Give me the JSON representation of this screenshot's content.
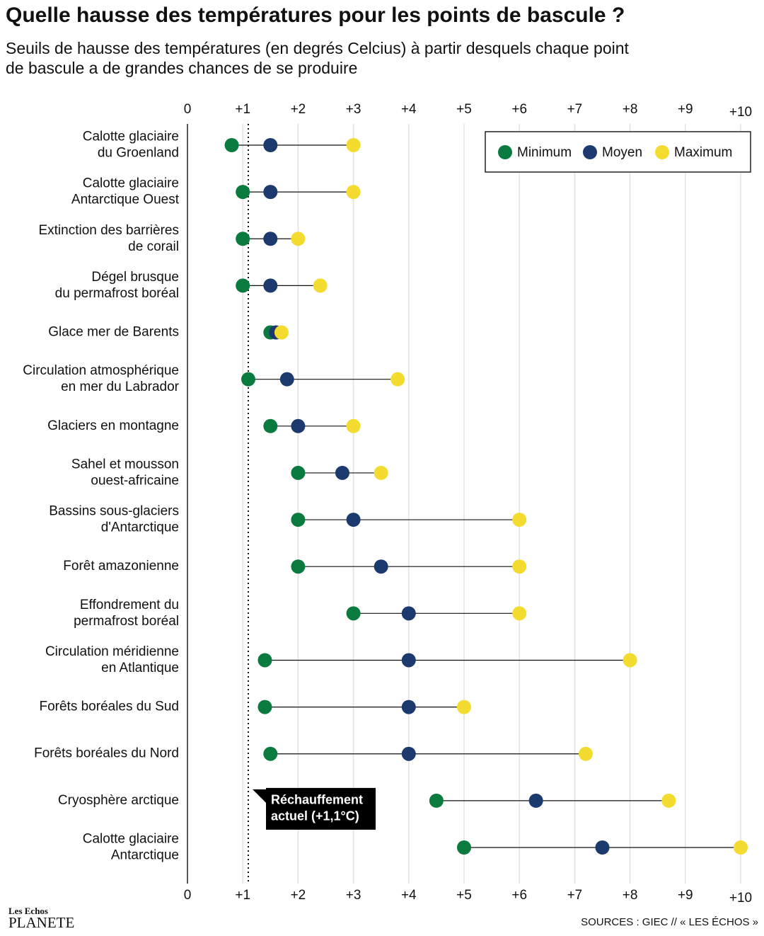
{
  "chart_data": {
    "type": "dumbbell",
    "title": "Quelle hausse des températures pour les points de bascule ?",
    "subtitle": [
      "Seuils de hausse des températures (en degrés Celcius) à partir desquels chaque point",
      "de bascule a de grandes chances de se produire"
    ],
    "categories": [
      [
        "Calotte glaciaire",
        "du Groenland"
      ],
      [
        "Calotte glaciaire",
        "Antarctique Ouest"
      ],
      [
        "Extinction des barrières",
        "de corail"
      ],
      [
        "Dégel brusque",
        "du permafrost boréal"
      ],
      [
        "Glace mer de Barents"
      ],
      [
        "Circulation atmosphérique",
        "en mer du Labrador"
      ],
      [
        "Glaciers en montagne"
      ],
      [
        "Sahel et mousson",
        "ouest-africaine"
      ],
      [
        "Bassins sous-glaciers",
        "d'Antarctique"
      ],
      [
        "Forêt amazonienne"
      ],
      [
        "Effondrement du",
        "permafrost boréal"
      ],
      [
        "Circulation méridienne",
        "en Atlantique"
      ],
      [
        "Forêts boréales du Sud"
      ],
      [
        "Forêts boréales du Nord"
      ],
      [
        "Cryosphère arctique"
      ],
      [
        "Calotte glaciaire",
        "Antarctique"
      ]
    ],
    "series": [
      {
        "name": "Minimum",
        "color": "#0b7a3e",
        "values": [
          0.8,
          1,
          1,
          1,
          1.5,
          1.1,
          1.5,
          2,
          2,
          2,
          3,
          1.4,
          1.4,
          1.5,
          4.5,
          5
        ]
      },
      {
        "name": "Moyen",
        "color": "#1c3a6e",
        "values": [
          1.5,
          1.5,
          1.5,
          1.5,
          1.6,
          1.8,
          2,
          2.8,
          3,
          3.5,
          4,
          4,
          4,
          4,
          6.3,
          7.5
        ]
      },
      {
        "name": "Maximum",
        "color": "#f3dc2f",
        "values": [
          3,
          3,
          2,
          2.4,
          1.7,
          3.8,
          3,
          3.5,
          6,
          6,
          6,
          8,
          5,
          7.2,
          8.7,
          10
        ]
      }
    ],
    "xlim": [
      0,
      10
    ],
    "xticks": [
      0,
      {
        "value": 1,
        "label": "+1"
      },
      {
        "value": 2,
        "label": "+2"
      },
      {
        "value": 3,
        "label": "+3"
      },
      {
        "value": 4,
        "label": "+4"
      },
      {
        "value": 5,
        "label": "+5"
      },
      {
        "value": 6,
        "label": "+6"
      },
      {
        "value": 7,
        "label": "+7"
      },
      {
        "value": 8,
        "label": "+8"
      },
      {
        "value": 9,
        "label": "+9"
      },
      {
        "value": 10,
        "label": "+10"
      }
    ],
    "grid": true,
    "legend": "top-right",
    "annotation": {
      "value": 1.1,
      "text": [
        "Réchauffement",
        "actuel (+1,1°C)"
      ]
    },
    "source": "SOURCES : GIEC // « LES ÉCHOS »",
    "logo": [
      "Les Echos",
      "PLANETE"
    ]
  }
}
